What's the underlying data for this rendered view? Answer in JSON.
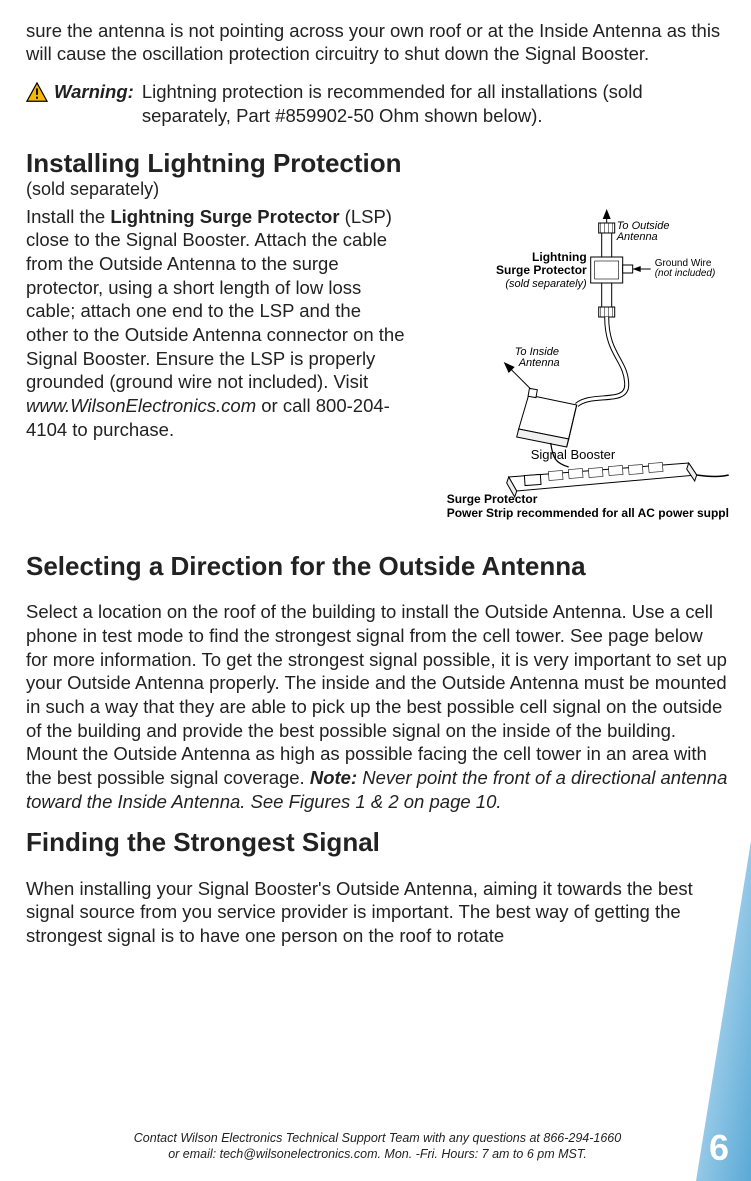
{
  "intro_fragment": "sure the antenna is not pointing across your own roof or at the Inside Antenna as this will cause the oscillation protection circuitry to shut down the Signal Booster.",
  "warning": {
    "label": "Warning:",
    "text": "Lightning protection is recommended for all installations (sold separately, Part #859902-50 Ohm shown below).",
    "icon_stroke": "#000000",
    "icon_fill": "#f5b800"
  },
  "installing": {
    "heading": "Installing Lightning Protection",
    "sub": "(sold separately)",
    "body_html": "Install the <b>Lightning Surge Protector</b> (LSP) close to the Signal Booster.  Attach the cable from the Outside Antenna to the surge protector, using a short length of low loss cable; attach one end to the LSP and the other to the Outside Antenna connector on the Signal Booster. Ensure the LSP is properly grounded (ground wire not included). Visit <i>www.WilsonElectronics.com</i> or call 800-204-4104 to purchase."
  },
  "diagram": {
    "labels": {
      "to_outside_antenna": "To Outside\nAntenna",
      "lightning_surge_protector": "Lightning\nSurge Protector",
      "sold_separately": "(sold separately)",
      "ground_wire": "Ground Wire",
      "ground_wire_note": "(not included)",
      "to_inside_antenna": "To Inside\nAntenna",
      "signal_booster": "Signal Booster",
      "surge_protector": "Surge Protector",
      "power_strip_note": "Power Strip recommended for all AC power supplies"
    },
    "colors": {
      "stroke": "#000000",
      "fill_light": "#f6f6f6",
      "fill_white": "#ffffff"
    },
    "fontsize_label": 11,
    "fontsize_label_small": 10,
    "fontsize_bold": 12
  },
  "selecting": {
    "heading": "Selecting a Direction for the Outside Antenna",
    "body_plain": "Select a location on the roof of the building to install the Outside Antenna. Use a cell phone in test mode to find the strongest signal from the cell tower. See page below for more information. To get the strongest signal possible, it is very important to set up your Outside Antenna properly. The inside and the Outside Antenna must be mounted in such a way that they are able to pick up the best possible cell signal on the outside of the building and provide the best possible signal on the inside of the building. Mount the Outside Antenna as high as possible facing the cell tower in an area with the best possible signal coverage. ",
    "note_label": "Note:",
    "note_body": " Never point the front of a directional antenna toward the Inside Antenna. See Figures 1 & 2 on page 10."
  },
  "finding": {
    "heading": "Finding the Strongest Signal",
    "body": "When installing your Signal Booster's Outside Antenna, aiming it towards the best signal source from you service provider is important.  The best way of getting the strongest signal is to have one person on the roof to rotate"
  },
  "footer": {
    "line1": "Contact Wilson Electronics Technical Support Team with any questions at 866-294-1660",
    "line2": "or email: tech@wilsonelectronics.com.    Mon. -Fri. Hours: 7 am to 6 pm MST."
  },
  "page_number": "6",
  "corner_gradient": {
    "from": "#cfe8f7",
    "to": "#5aa9d6"
  }
}
